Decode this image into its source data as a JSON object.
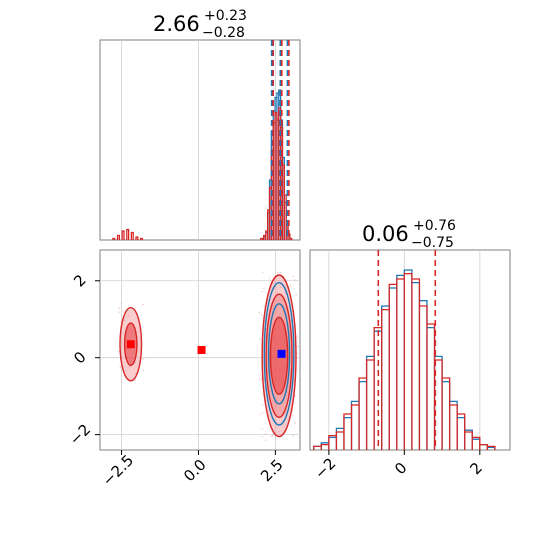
{
  "chart_data": [
    {
      "panel": "marginal-top-left",
      "type": "histogram",
      "title": {
        "value": "2.66",
        "plus": "+0.23",
        "minus": "−0.28"
      },
      "xlim": [
        -3.2,
        3.3
      ],
      "quantile_lines": [
        2.38,
        2.66,
        2.89
      ],
      "grid": true,
      "series": [
        {
          "color": "#1f77b4",
          "bins": [
            [
              2.15,
              0.02
            ],
            [
              2.22,
              0.05
            ],
            [
              2.28,
              0.18
            ],
            [
              2.34,
              0.4
            ],
            [
              2.4,
              0.72
            ],
            [
              2.46,
              0.86
            ],
            [
              2.52,
              0.95
            ],
            [
              2.58,
              0.98
            ],
            [
              2.64,
              1.0
            ],
            [
              2.7,
              0.8
            ],
            [
              2.76,
              0.55
            ],
            [
              2.82,
              0.25
            ],
            [
              2.88,
              0.1
            ],
            [
              2.94,
              0.03
            ]
          ]
        },
        {
          "color": "#d62728",
          "bins": [
            [
              -2.75,
              0.01
            ],
            [
              -2.6,
              0.03
            ],
            [
              -2.45,
              0.06
            ],
            [
              -2.3,
              0.07
            ],
            [
              -2.15,
              0.05
            ],
            [
              -2.0,
              0.02
            ],
            [
              -1.85,
              0.01
            ],
            [
              2.05,
              0.01
            ],
            [
              2.15,
              0.03
            ],
            [
              2.22,
              0.06
            ],
            [
              2.28,
              0.2
            ],
            [
              2.34,
              0.35
            ],
            [
              2.4,
              0.6
            ],
            [
              2.46,
              0.78
            ],
            [
              2.52,
              0.85
            ],
            [
              2.58,
              0.8
            ],
            [
              2.64,
              0.88
            ],
            [
              2.7,
              0.75
            ],
            [
              2.76,
              0.5
            ],
            [
              2.82,
              0.3
            ],
            [
              2.88,
              0.12
            ],
            [
              2.94,
              0.04
            ],
            [
              3.0,
              0.01
            ]
          ]
        }
      ]
    },
    {
      "panel": "marginal-bottom-right",
      "type": "histogram",
      "title": {
        "value": "0.06",
        "plus": "+0.76",
        "minus": "−0.75"
      },
      "xlim": [
        -2.5,
        2.8
      ],
      "quantile_lines": [
        -0.69,
        0.82
      ],
      "grid": true,
      "series": [
        {
          "color": "#1f77b4",
          "bins": [
            [
              -2.3,
              0.02
            ],
            [
              -2.1,
              0.04
            ],
            [
              -1.9,
              0.07
            ],
            [
              -1.7,
              0.12
            ],
            [
              -1.5,
              0.18
            ],
            [
              -1.3,
              0.27
            ],
            [
              -1.1,
              0.38
            ],
            [
              -0.9,
              0.52
            ],
            [
              -0.7,
              0.66
            ],
            [
              -0.5,
              0.8
            ],
            [
              -0.3,
              0.9
            ],
            [
              -0.1,
              0.97
            ],
            [
              0.1,
              1.0
            ],
            [
              0.3,
              0.93
            ],
            [
              0.5,
              0.83
            ],
            [
              0.7,
              0.68
            ],
            [
              0.9,
              0.52
            ],
            [
              1.1,
              0.38
            ],
            [
              1.3,
              0.27
            ],
            [
              1.5,
              0.18
            ],
            [
              1.7,
              0.11
            ],
            [
              1.9,
              0.06
            ],
            [
              2.1,
              0.03
            ],
            [
              2.3,
              0.015
            ]
          ]
        },
        {
          "color": "#d62728",
          "bins": [
            [
              -2.3,
              0.02
            ],
            [
              -2.1,
              0.03
            ],
            [
              -1.9,
              0.08
            ],
            [
              -1.7,
              0.1
            ],
            [
              -1.5,
              0.2
            ],
            [
              -1.3,
              0.25
            ],
            [
              -1.1,
              0.4
            ],
            [
              -0.9,
              0.5
            ],
            [
              -0.7,
              0.68
            ],
            [
              -0.5,
              0.78
            ],
            [
              -0.3,
              0.92
            ],
            [
              -0.1,
              0.95
            ],
            [
              0.1,
              0.98
            ],
            [
              0.3,
              0.95
            ],
            [
              0.5,
              0.8
            ],
            [
              0.7,
              0.7
            ],
            [
              0.9,
              0.5
            ],
            [
              1.1,
              0.4
            ],
            [
              1.3,
              0.25
            ],
            [
              1.5,
              0.2
            ],
            [
              1.7,
              0.1
            ],
            [
              1.9,
              0.07
            ],
            [
              2.1,
              0.03
            ],
            [
              2.3,
              0.02
            ]
          ]
        }
      ]
    },
    {
      "panel": "joint-bottom-left",
      "type": "contour",
      "xlim": [
        -3.2,
        3.3
      ],
      "ylim": [
        -2.4,
        2.8
      ],
      "grid": true,
      "x_ticks": [
        "−2.5",
        "0.0",
        "2.5"
      ],
      "y_ticks": [
        "−2",
        "0",
        "2"
      ],
      "x_tick_values": [
        -2.5,
        0.0,
        2.5
      ],
      "y_tick_values": [
        -2,
        0,
        2
      ],
      "red_contours": [
        {
          "cx": -2.2,
          "cy": 0.35,
          "rx": 0.35,
          "ry": 0.95
        },
        {
          "cx": -2.2,
          "cy": 0.35,
          "rx": 0.2,
          "ry": 0.55
        },
        {
          "cx": 2.62,
          "cy": 0.05,
          "rx": 0.55,
          "ry": 2.1
        },
        {
          "cx": 2.62,
          "cy": 0.05,
          "rx": 0.42,
          "ry": 1.6
        },
        {
          "cx": 2.62,
          "cy": 0.05,
          "rx": 0.28,
          "ry": 1.0
        }
      ],
      "blue_contours": [
        {
          "cx": 2.62,
          "cy": 0.1,
          "rx": 0.48,
          "ry": 1.85
        },
        {
          "cx": 2.62,
          "cy": 0.1,
          "rx": 0.34,
          "ry": 1.3
        }
      ],
      "markers": [
        {
          "x": -2.2,
          "y": 0.35,
          "color": "#ff0000"
        },
        {
          "x": 0.1,
          "y": 0.2,
          "color": "#ff0000"
        },
        {
          "x": 2.7,
          "y": 0.1,
          "color": "#0000ff"
        }
      ]
    }
  ],
  "colors": {
    "blue": "#1f77b4",
    "red": "#d62728",
    "red_fill": "#f4a3a5",
    "red_fill_core": "#e8373a",
    "blue_fill": "#7fa6c9",
    "grid": "#d0d0d0",
    "frame": "#808080"
  }
}
